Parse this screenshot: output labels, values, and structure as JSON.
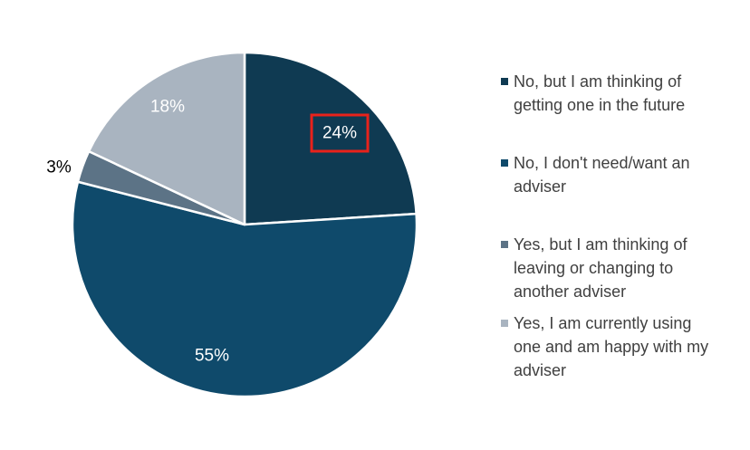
{
  "chart_data": {
    "type": "pie",
    "slices": [
      {
        "label": "No, but I am thinking of getting one in the future",
        "value": 24,
        "display": "24%",
        "color": "#0f3a52",
        "label_color": "#ffffff",
        "highlighted": true
      },
      {
        "label": "No, I don't need/want an adviser",
        "value": 55,
        "display": "55%",
        "color": "#0f4a6b",
        "label_color": "#ffffff",
        "highlighted": false
      },
      {
        "label": "Yes, but I am thinking of leaving or changing to another adviser",
        "value": 3,
        "display": "3%",
        "color": "#5c7386",
        "label_color": "#000000",
        "highlighted": false
      },
      {
        "label": "Yes, I am currently using one and am happy with my adviser",
        "value": 18,
        "display": "18%",
        "color": "#a9b4c0",
        "label_color": "#ffffff",
        "highlighted": false
      }
    ],
    "legend": {
      "placement": "right",
      "entries": [
        {
          "lines": [
            "No, but I am thinking of",
            "getting one in the future"
          ],
          "color": "#0f3a52"
        },
        {
          "lines": [
            "No, I don't need/want an",
            "adviser"
          ],
          "color": "#0f4a6b"
        },
        {
          "lines": [
            "Yes, but I am thinking of",
            "leaving or changing to",
            "another adviser"
          ],
          "color": "#5c7386"
        },
        {
          "lines": [
            "Yes, I am currently using",
            "one and am happy with my",
            "adviser"
          ],
          "color": "#a9b4c0"
        }
      ]
    },
    "highlight_color": "#e8221b"
  }
}
